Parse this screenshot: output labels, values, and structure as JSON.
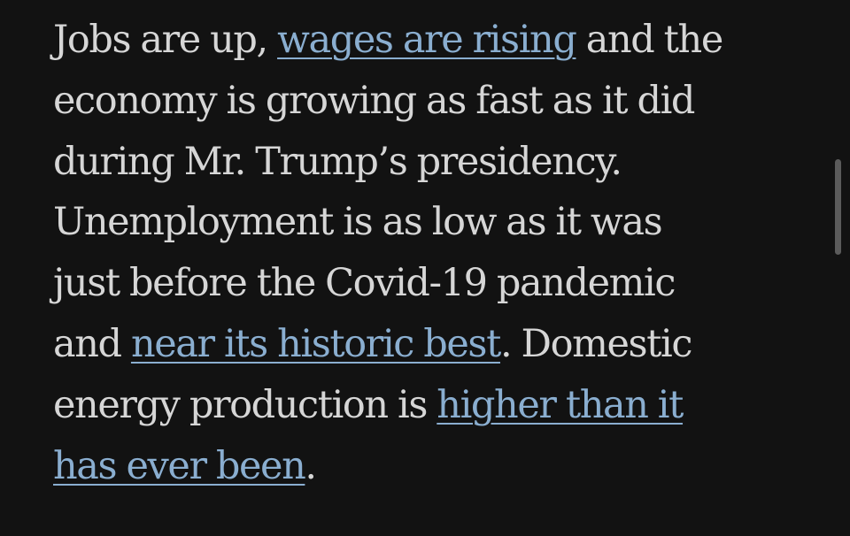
{
  "article": {
    "lines": [
      {
        "before": "Jobs are up, ",
        "link": "wages are rising",
        "after": " and the"
      },
      {
        "text": "economy is growing as fast as it did"
      },
      {
        "text": "during Mr. Trump’s presidency."
      },
      {
        "text": "Unemployment is as low as it was"
      },
      {
        "text": "just before the Covid-19 pandemic"
      },
      {
        "before": "and ",
        "link": "near its historic best",
        "after": ". Domestic"
      },
      {
        "before": "energy production is ",
        "link": "higher than it"
      },
      {
        "link": "has ever been",
        "after": "."
      }
    ]
  },
  "colors": {
    "background": "#121212",
    "text": "#d6d6d6",
    "link": "#8aaed0",
    "scrollbar": "#5b5b5b"
  }
}
